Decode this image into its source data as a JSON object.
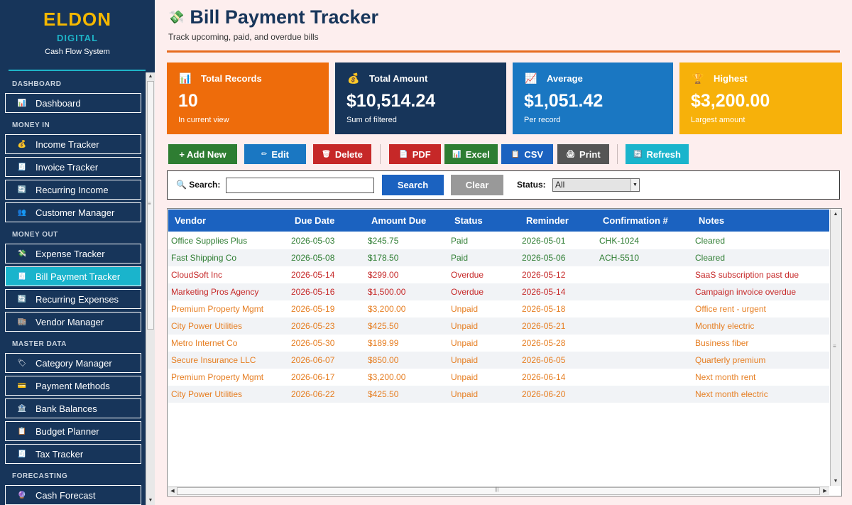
{
  "brand": {
    "title": "ELDON",
    "subtitle": "DIGITAL",
    "tagline": "Cash Flow System"
  },
  "sidebar": {
    "sections": [
      {
        "label": "DASHBOARD",
        "items": [
          {
            "label": "Dashboard",
            "icon": "chart-icon"
          }
        ]
      },
      {
        "label": "MONEY IN",
        "items": [
          {
            "label": "Income Tracker",
            "icon": "money-bag-icon"
          },
          {
            "label": "Invoice Tracker",
            "icon": "invoice-icon"
          },
          {
            "label": "Recurring Income",
            "icon": "recurring-icon"
          },
          {
            "label": "Customer Manager",
            "icon": "people-icon"
          }
        ]
      },
      {
        "label": "MONEY OUT",
        "items": [
          {
            "label": "Expense Tracker",
            "icon": "money-wings-icon"
          },
          {
            "label": "Bill Payment Tracker",
            "icon": "bill-icon",
            "active": true
          },
          {
            "label": "Recurring Expenses",
            "icon": "recurring-icon"
          },
          {
            "label": "Vendor Manager",
            "icon": "store-icon"
          }
        ]
      },
      {
        "label": "MASTER DATA",
        "items": [
          {
            "label": "Category Manager",
            "icon": "tag-icon"
          },
          {
            "label": "Payment Methods",
            "icon": "card-icon"
          },
          {
            "label": "Bank Balances",
            "icon": "bank-icon"
          },
          {
            "label": "Budget Planner",
            "icon": "clipboard-icon"
          },
          {
            "label": "Tax Tracker",
            "icon": "receipt-icon"
          }
        ]
      },
      {
        "label": "FORECASTING",
        "items": [
          {
            "label": "Cash Forecast",
            "icon": "crystal-ball-icon"
          }
        ]
      }
    ]
  },
  "page": {
    "title": "Bill Payment Tracker",
    "subtitle": "Track upcoming, paid, and overdue bills"
  },
  "cards": [
    {
      "title": "Total Records",
      "value": "10",
      "note": "In current view",
      "color": "#ee6c0b",
      "icon": "bar-chart-icon"
    },
    {
      "title": "Total Amount",
      "value": "$10,514.24",
      "note": "Sum of filtered",
      "color": "#17355a",
      "icon": "money-bag-icon"
    },
    {
      "title": "Average",
      "value": "$1,051.42",
      "note": "Per record",
      "color": "#1a77c2",
      "icon": "trend-icon"
    },
    {
      "title": "Highest",
      "value": "$3,200.00",
      "note": "Largest amount",
      "color": "#f7b10a",
      "icon": "trophy-icon"
    }
  ],
  "toolbar": {
    "add": "+ Add New",
    "edit": "Edit",
    "delete": "Delete",
    "pdf": "PDF",
    "excel": "Excel",
    "csv": "CSV",
    "print": "Print",
    "refresh": "Refresh",
    "colors": {
      "add": "#2e7d32",
      "edit": "#1a77c2",
      "delete": "#c62828",
      "pdf": "#c62828",
      "excel": "#2e7d32",
      "csv": "#1b62c0",
      "print": "#555555",
      "refresh": "#1ab4cc"
    }
  },
  "search": {
    "label": "Search:",
    "value": "",
    "button": "Search",
    "clear": "Clear",
    "status_label": "Status:",
    "status_value": "All"
  },
  "table": {
    "columns": [
      "Vendor",
      "Due Date",
      "Amount Due",
      "Status",
      "Reminder",
      "Confirmation #",
      "Notes"
    ],
    "rows": [
      {
        "vendor": "Office Supplies Plus",
        "due": "2026-05-03",
        "amount": "$245.75",
        "status": "Paid",
        "reminder": "2026-05-01",
        "conf": "CHK-1024",
        "notes": "Cleared"
      },
      {
        "vendor": "Fast Shipping Co",
        "due": "2026-05-08",
        "amount": "$178.50",
        "status": "Paid",
        "reminder": "2026-05-06",
        "conf": "ACH-5510",
        "notes": "Cleared"
      },
      {
        "vendor": "CloudSoft Inc",
        "due": "2026-05-14",
        "amount": "$299.00",
        "status": "Overdue",
        "reminder": "2026-05-12",
        "conf": "",
        "notes": "SaaS subscription past due"
      },
      {
        "vendor": "Marketing Pros Agency",
        "due": "2026-05-16",
        "amount": "$1,500.00",
        "status": "Overdue",
        "reminder": "2026-05-14",
        "conf": "",
        "notes": "Campaign invoice overdue"
      },
      {
        "vendor": "Premium Property Mgmt",
        "due": "2026-05-19",
        "amount": "$3,200.00",
        "status": "Unpaid",
        "reminder": "2026-05-18",
        "conf": "",
        "notes": "Office rent - urgent"
      },
      {
        "vendor": "City Power Utilities",
        "due": "2026-05-23",
        "amount": "$425.50",
        "status": "Unpaid",
        "reminder": "2026-05-21",
        "conf": "",
        "notes": "Monthly electric"
      },
      {
        "vendor": "Metro Internet Co",
        "due": "2026-05-30",
        "amount": "$189.99",
        "status": "Unpaid",
        "reminder": "2026-05-28",
        "conf": "",
        "notes": "Business fiber"
      },
      {
        "vendor": "Secure Insurance LLC",
        "due": "2026-06-07",
        "amount": "$850.00",
        "status": "Unpaid",
        "reminder": "2026-06-05",
        "conf": "",
        "notes": "Quarterly premium"
      },
      {
        "vendor": "Premium Property Mgmt",
        "due": "2026-06-17",
        "amount": "$3,200.00",
        "status": "Unpaid",
        "reminder": "2026-06-14",
        "conf": "",
        "notes": "Next month rent"
      },
      {
        "vendor": "City Power Utilities",
        "due": "2026-06-22",
        "amount": "$425.50",
        "status": "Unpaid",
        "reminder": "2026-06-20",
        "conf": "",
        "notes": "Next month electric"
      }
    ]
  }
}
